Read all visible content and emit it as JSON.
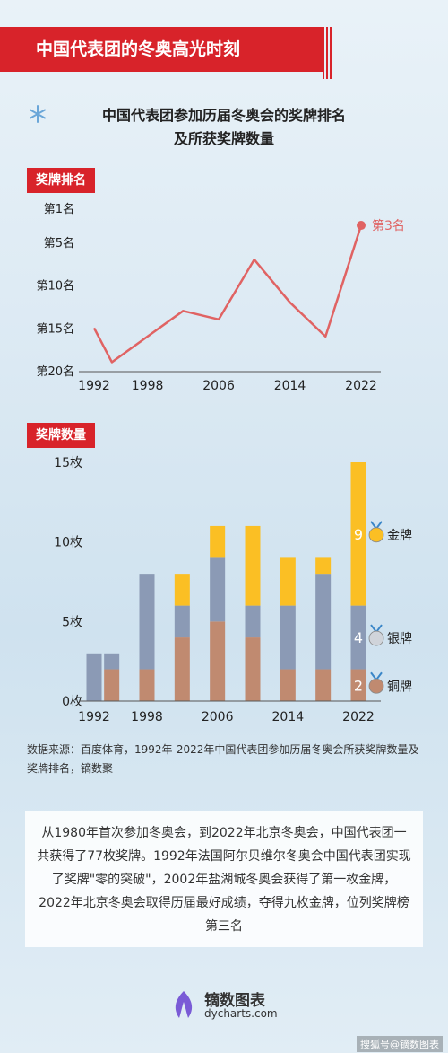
{
  "banner": {
    "title": "中国代表团的冬奥高光时刻"
  },
  "subtitle": {
    "line1": "中国代表团参加历届冬奥会的奖牌排名",
    "line2": "及所获奖牌数量"
  },
  "rank_section": {
    "tag": "奖牌排名"
  },
  "medal_section": {
    "tag": "奖牌数量"
  },
  "colors": {
    "accent": "#d8232a",
    "line": "#e06363",
    "gold": "#fbbf24",
    "silver": "#8b9ab5",
    "bronze": "#c08a70"
  },
  "chart_data": [
    {
      "type": "line",
      "x": [
        1992,
        1994,
        1998,
        2002,
        2006,
        2010,
        2014,
        2018,
        2022
      ],
      "values": [
        15,
        19,
        16,
        13,
        14,
        7,
        12,
        16,
        3
      ],
      "y_axis_reversed": true,
      "ylim": [
        1,
        20
      ],
      "y_ticks": [
        1,
        5,
        10,
        15,
        20
      ],
      "y_tick_labels": [
        "第1名",
        "第5名",
        "第10名",
        "第15名",
        "第20名"
      ],
      "x_tick_labels": [
        "1992",
        "1998",
        "2006",
        "2014",
        "2022"
      ],
      "annotation": "第3名"
    },
    {
      "type": "bar",
      "stacked": true,
      "categories": [
        1992,
        1994,
        1998,
        2002,
        2006,
        2010,
        2014,
        2018,
        2022
      ],
      "series": [
        {
          "name": "铜牌",
          "values": [
            0,
            2,
            2,
            4,
            5,
            4,
            2,
            2,
            2
          ]
        },
        {
          "name": "银牌",
          "values": [
            3,
            1,
            6,
            2,
            4,
            2,
            4,
            6,
            4
          ]
        },
        {
          "name": "金牌",
          "values": [
            0,
            0,
            0,
            2,
            2,
            5,
            3,
            1,
            9
          ]
        }
      ],
      "ylim": [
        0,
        15
      ],
      "y_ticks": [
        0,
        5,
        10,
        15
      ],
      "y_tick_labels": [
        "0枚",
        "5枚",
        "10枚",
        "15枚"
      ],
      "x_tick_labels": [
        "1992",
        "1998",
        "2006",
        "2014",
        "2022"
      ],
      "bar_labels_2022": [
        "9",
        "4",
        "2"
      ],
      "legend": [
        "金牌",
        "银牌",
        "铜牌"
      ]
    }
  ],
  "source": "数据来源：百度体育，1992年-2022年中国代表团参加历届冬奥会所获奖牌数量及奖牌排名，镝数聚",
  "summary": "从1980年首次参加冬奥会，到2022年北京冬奥会，中国代表团一共获得了77枚奖牌。1992年法国阿尔贝维尔冬奥会中国代表团实现了奖牌\"零的突破\"，2002年盐湖城冬奥会获得了第一枚金牌，2022年北京冬奥会取得历届最好成绩，夺得九枚金牌，位列奖牌榜第三名",
  "brand": {
    "name": "镝数图表",
    "url": "dycharts.com"
  },
  "watermark": "搜狐号@镝数图表"
}
